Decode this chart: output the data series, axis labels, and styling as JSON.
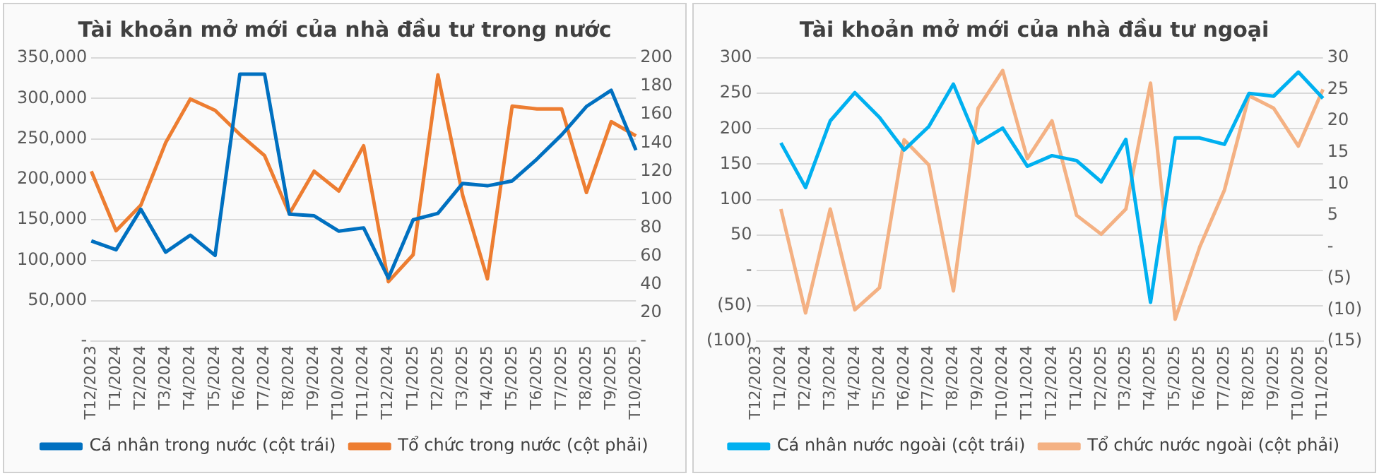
{
  "chart_data": [
    {
      "type": "line",
      "title": "Tài khoản mở mới của nhà đầu tư trong nước",
      "categories": [
        "T12/2023",
        "T1/2024",
        "T2/2024",
        "T3/2024",
        "T4/2024",
        "T5/2024",
        "T6/2024",
        "T7/2024",
        "T8/2024",
        "T9/2024",
        "T10/2024",
        "T11/2024",
        "T12/2024",
        "T1/2025",
        "T2/2025",
        "T3/2025",
        "T4/2025",
        "T5/2025",
        "T6/2025",
        "T7/2025",
        "T8/2025",
        "T9/2025",
        "T10/2025"
      ],
      "series": [
        {
          "name": "Cá nhân trong nước (cột trái)",
          "color": "#0070c0",
          "values": [
            124000,
            113000,
            163000,
            110000,
            131000,
            106000,
            330000,
            330000,
            157000,
            155000,
            136000,
            140000,
            78000,
            150000,
            158000,
            195000,
            192000,
            198000,
            225000,
            255000,
            290000,
            310000,
            236000
          ]
        },
        {
          "name": "Tổ chức trong nước (cột phải)",
          "color": "#ed7d31",
          "axis": "y2",
          "values": [
            120,
            78,
            96,
            140,
            171,
            163,
            146,
            131,
            90,
            120,
            106,
            138,
            42,
            61,
            188,
            103,
            44,
            166,
            164,
            164,
            105,
            155,
            145
          ]
        }
      ],
      "ylim": [
        0,
        350000
      ],
      "yticks": [
        {
          "value": 0,
          "label": "-"
        },
        {
          "value": 50000,
          "label": "50,000"
        },
        {
          "value": 100000,
          "label": "100,000"
        },
        {
          "value": 150000,
          "label": "150,000"
        },
        {
          "value": 200000,
          "label": "200,000"
        },
        {
          "value": 250000,
          "label": "250,000"
        },
        {
          "value": 300000,
          "label": "300,000"
        },
        {
          "value": 350000,
          "label": "350,000"
        }
      ],
      "y2lim": [
        0,
        200
      ],
      "y2ticks": [
        {
          "value": 0,
          "label": "-"
        },
        20,
        40,
        60,
        80,
        100,
        120,
        140,
        160,
        180,
        200
      ],
      "grid": "y",
      "legend": "bottom",
      "marker": "none"
    },
    {
      "type": "line",
      "title": "Tài khoản mở mới của nhà đầu tư ngoại",
      "categories": [
        "T12/2023",
        "T1/2024",
        "T2/2024",
        "T3/2024",
        "T4/2024",
        "T5/2024",
        "T6/2024",
        "T7/2024",
        "T8/2024",
        "T9/2024",
        "T10/2024",
        "T11/2024",
        "T12/2024",
        "T1/2025",
        "T2/2025",
        "T3/2025",
        "T4/2025",
        "T5/2025",
        "T6/2025",
        "T7/2025",
        "T8/2025",
        "T9/2025",
        "T10/2025",
        "T11/2025"
      ],
      "series": [
        {
          "name": "Cá nhân nước ngoài (cột trái)",
          "color": "#00b0f0",
          "values": [
            null,
            180,
            117,
            211,
            251,
            216,
            170,
            203,
            263,
            180,
            201,
            147,
            162,
            155,
            125,
            185,
            -45,
            187,
            187,
            178,
            250,
            246,
            280,
            243
          ]
        },
        {
          "name": "Tổ chức nước ngoài (cột phải)",
          "color": "#f4b183",
          "axis": "y2",
          "values": [
            null,
            6,
            -10.5,
            6,
            -10,
            -6.5,
            17,
            13,
            -7,
            22,
            28,
            14,
            20,
            5,
            2,
            6,
            26,
            -11.5,
            0,
            9,
            24,
            22,
            16,
            25
          ]
        }
      ],
      "ylim": [
        -100,
        300
      ],
      "yticks": [
        {
          "value": -100,
          "label": "(100)"
        },
        {
          "value": -50,
          "label": "(50)"
        },
        {
          "value": 0,
          "label": "-"
        },
        50,
        100,
        150,
        200,
        250,
        300
      ],
      "y2lim": [
        -15,
        30
      ],
      "y2ticks": [
        {
          "value": -15,
          "label": "(15)"
        },
        {
          "value": -10,
          "label": "(10)"
        },
        {
          "value": -5,
          "label": "(5)"
        },
        {
          "value": 0,
          "label": "-"
        },
        5,
        10,
        15,
        20,
        25,
        30
      ],
      "grid": "y",
      "legend": "bottom",
      "marker": "none"
    }
  ]
}
